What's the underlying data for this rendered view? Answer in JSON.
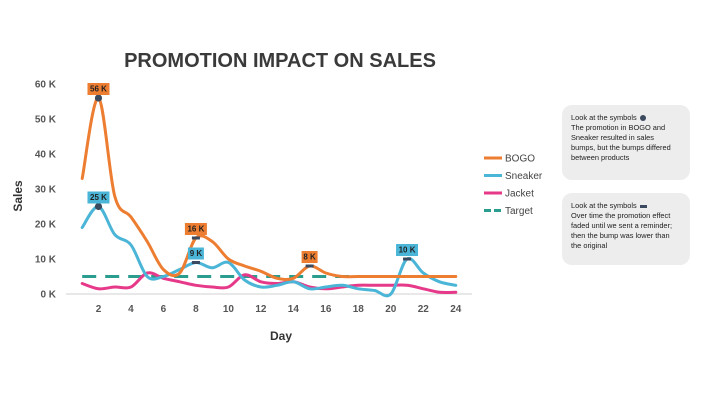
{
  "chart_data": {
    "type": "line",
    "title": "PROMOTION IMPACT ON SALES",
    "xlabel": "Day",
    "ylabel": "Sales",
    "x": [
      1,
      2,
      3,
      4,
      5,
      6,
      7,
      8,
      9,
      10,
      11,
      12,
      13,
      14,
      15,
      16,
      17,
      18,
      19,
      20,
      21,
      22,
      23,
      24
    ],
    "x_ticks": [
      2,
      4,
      6,
      8,
      10,
      12,
      14,
      16,
      18,
      20,
      22,
      24
    ],
    "xlim": [
      0,
      25
    ],
    "ylim": [
      0,
      60000
    ],
    "y_ticks": [
      0,
      10000,
      20000,
      30000,
      40000,
      50000,
      60000
    ],
    "y_tick_labels": [
      "0 K",
      "10 K",
      "20 K",
      "30 K",
      "40 K",
      "50 K",
      "60 K"
    ],
    "grid": false,
    "legend_position": "right",
    "series": [
      {
        "name": "BOGO",
        "color": "#ed7d31",
        "values": [
          33000,
          56000,
          28000,
          22000,
          15000,
          7000,
          6000,
          16000,
          15000,
          10000,
          8000,
          6500,
          4500,
          4500,
          8000,
          6000,
          5000,
          5000,
          5000,
          5000,
          5000,
          5000,
          5000,
          5000
        ]
      },
      {
        "name": "Sneaker",
        "color": "#4bb5d8",
        "values": [
          19000,
          25000,
          17000,
          14000,
          5000,
          5000,
          7000,
          9000,
          7500,
          9000,
          4000,
          2000,
          2500,
          3500,
          1500,
          2000,
          2500,
          1500,
          1000,
          0,
          10000,
          6000,
          3500,
          2500
        ]
      },
      {
        "name": "Jacket",
        "color": "#e6398a",
        "values": [
          3000,
          1500,
          2000,
          2000,
          6000,
          4500,
          3500,
          2500,
          2000,
          2000,
          5500,
          3500,
          3000,
          3500,
          2000,
          1500,
          2000,
          2500,
          2500,
          2500,
          2500,
          1500,
          500,
          500
        ]
      },
      {
        "name": "Target",
        "color": "#2a9d8f",
        "dashed": true,
        "values": [
          5000,
          5000,
          5000,
          5000,
          5000,
          5000,
          5000,
          5000,
          5000,
          5000,
          5000,
          5000,
          5000,
          5000,
          5000,
          5000,
          5000,
          5000,
          5000,
          5000,
          5000,
          5000,
          5000,
          5000
        ]
      }
    ],
    "annotations": [
      {
        "series": "BOGO",
        "x": 2,
        "y": 56000,
        "label": "56 K",
        "marker": "circle"
      },
      {
        "series": "Sneaker",
        "x": 2,
        "y": 25000,
        "label": "25 K",
        "marker": "circle"
      },
      {
        "series": "BOGO",
        "x": 8,
        "y": 16000,
        "label": "16 K",
        "marker": "dash"
      },
      {
        "series": "Sneaker",
        "x": 8,
        "y": 9000,
        "label": "9 K",
        "marker": "dash"
      },
      {
        "series": "BOGO",
        "x": 15,
        "y": 8000,
        "label": "8 K",
        "marker": "dash"
      },
      {
        "series": "Sneaker",
        "x": 21,
        "y": 10000,
        "label": "10 K",
        "marker": "dash"
      }
    ]
  },
  "notes": [
    {
      "intro": "Look at the symbols",
      "marker": "circle",
      "text": "The promotion in BOGO and Sneaker resulted in sales bumps, but the bumps differed between products"
    },
    {
      "intro": "Look at the symbols",
      "marker": "dash",
      "text": "Over time the promotion effect faded until we sent a reminder; then the bump was lower than the original"
    }
  ]
}
